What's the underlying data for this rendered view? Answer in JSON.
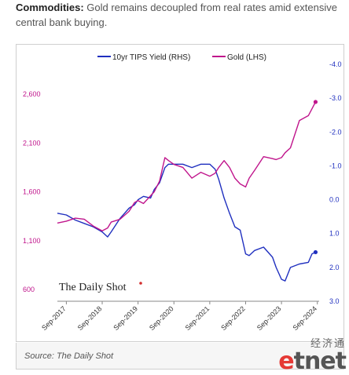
{
  "headline": {
    "lead": "Commodities:",
    "text": " Gold remains decoupled from real rates amid extensive central bank buying."
  },
  "source": "Source: The Daily Shot",
  "watermark": {
    "chinese": "经济通",
    "logo": "etnet"
  },
  "chart_data": {
    "type": "line",
    "brand": "The Daily Shot",
    "x_tick_labels": [
      "Sep-2017",
      "Sep-2018",
      "Sep-2019",
      "Sep-2020",
      "Sep-2021",
      "Sep-2022",
      "Sep-2023",
      "Sep-2024"
    ],
    "left_axis": {
      "ticks": [
        "600",
        "1,100",
        "1,600",
        "2,100",
        "2,600"
      ],
      "values": [
        600,
        1100,
        1600,
        2100,
        2600
      ],
      "range": [
        600,
        2600
      ]
    },
    "right_axis": {
      "ticks": [
        "-4.0",
        "-3.0",
        "-2.0",
        "-1.0",
        "0.0",
        "1.0",
        "2.0",
        "3.0"
      ],
      "values": [
        -4,
        -3,
        -2,
        -1,
        0,
        1,
        2,
        3
      ],
      "range": [
        -4,
        3
      ],
      "inverted": true
    },
    "legend": [
      "10yr TIPS Yield (RHS)",
      "Gold (LHS)"
    ],
    "colors": {
      "tips": "#1f2fbf",
      "gold": "#c0158c",
      "left_ticks": "#c0158c",
      "right_ticks": "#1f2fbf"
    },
    "series": [
      {
        "name": "10yr TIPS Yield (RHS)",
        "axis": "right",
        "x": [
          2017.5,
          2017.75,
          2018.0,
          2018.25,
          2018.5,
          2018.75,
          2018.9,
          2019.0,
          2019.25,
          2019.5,
          2019.65,
          2019.75,
          2019.9,
          2020.1,
          2020.2,
          2020.35,
          2020.5,
          2020.6,
          2020.75,
          2021.0,
          2021.25,
          2021.5,
          2021.75,
          2021.9,
          2022.0,
          2022.15,
          2022.3,
          2022.45,
          2022.6,
          2022.75,
          2022.85,
          2023.0,
          2023.25,
          2023.5,
          2023.6,
          2023.75,
          2023.85,
          2024.0,
          2024.25,
          2024.5,
          2024.6,
          2024.7
        ],
        "values": [
          0.4,
          0.45,
          0.6,
          0.7,
          0.8,
          0.95,
          1.1,
          0.95,
          0.55,
          0.25,
          0.15,
          0.0,
          -0.1,
          -0.05,
          -0.3,
          -0.5,
          -0.95,
          -1.05,
          -1.05,
          -1.05,
          -0.95,
          -1.05,
          -1.05,
          -0.9,
          -0.6,
          -0.05,
          0.4,
          0.8,
          0.9,
          1.6,
          1.65,
          1.5,
          1.4,
          1.7,
          2.0,
          2.35,
          2.4,
          2.0,
          1.9,
          1.85,
          1.6,
          1.55
        ]
      },
      {
        "name": "Gold (LHS)",
        "axis": "left",
        "x": [
          2017.5,
          2017.75,
          2018.0,
          2018.25,
          2018.5,
          2018.75,
          2018.9,
          2019.0,
          2019.25,
          2019.5,
          2019.65,
          2019.75,
          2019.9,
          2020.1,
          2020.2,
          2020.35,
          2020.5,
          2020.6,
          2020.75,
          2021.0,
          2021.25,
          2021.5,
          2021.75,
          2021.9,
          2022.0,
          2022.15,
          2022.3,
          2022.45,
          2022.6,
          2022.75,
          2022.85,
          2023.0,
          2023.25,
          2023.5,
          2023.6,
          2023.75,
          2023.85,
          2024.0,
          2024.25,
          2024.5,
          2024.6,
          2024.7
        ],
        "values": [
          1280,
          1300,
          1330,
          1320,
          1250,
          1200,
          1230,
          1290,
          1320,
          1400,
          1490,
          1510,
          1480,
          1560,
          1600,
          1710,
          1950,
          1920,
          1880,
          1850,
          1740,
          1800,
          1760,
          1790,
          1850,
          1920,
          1850,
          1740,
          1680,
          1650,
          1740,
          1820,
          1960,
          1940,
          1930,
          1950,
          2000,
          2050,
          2330,
          2380,
          2450,
          2520
        ]
      }
    ]
  }
}
